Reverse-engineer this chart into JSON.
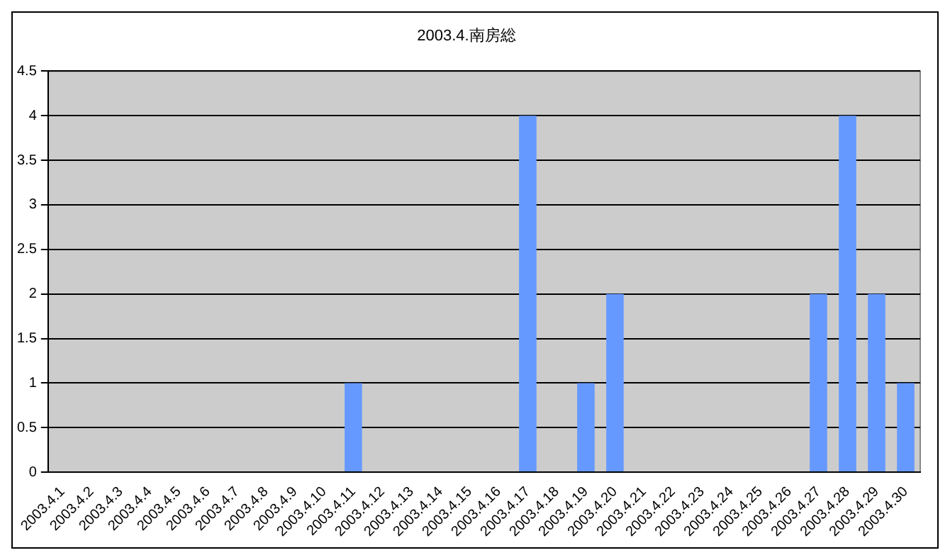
{
  "chart_data": {
    "type": "bar",
    "title": "2003.4.南房総",
    "categories": [
      "2003.4.1",
      "2003.4.2",
      "2003.4.3",
      "2003.4.4",
      "2003.4.5",
      "2003.4.6",
      "2003.4.7",
      "2003.4.8",
      "2003.4.9",
      "2003.4.10",
      "2003.4.11",
      "2003.4.12",
      "2003.4.13",
      "2003.4.14",
      "2003.4.15",
      "2003.4.16",
      "2003.4.17",
      "2003.4.18",
      "2003.4.19",
      "2003.4.20",
      "2003.4.21",
      "2003.4.22",
      "2003.4.23",
      "2003.4.24",
      "2003.4.25",
      "2003.4.26",
      "2003.4.27",
      "2003.4.28",
      "2003.4.29",
      "2003.4.30"
    ],
    "values": [
      0,
      0,
      0,
      0,
      0,
      0,
      0,
      0,
      0,
      0,
      1,
      0,
      0,
      0,
      0,
      0,
      4,
      0,
      1,
      2,
      0,
      0,
      0,
      0,
      0,
      0,
      2,
      4,
      2,
      1
    ],
    "color": "#6699ff",
    "ylim": [
      0,
      4.5
    ],
    "yticks": [
      0,
      0.5,
      1,
      1.5,
      2,
      2.5,
      3,
      3.5,
      4,
      4.5
    ],
    "grid": "y",
    "legend": false
  }
}
